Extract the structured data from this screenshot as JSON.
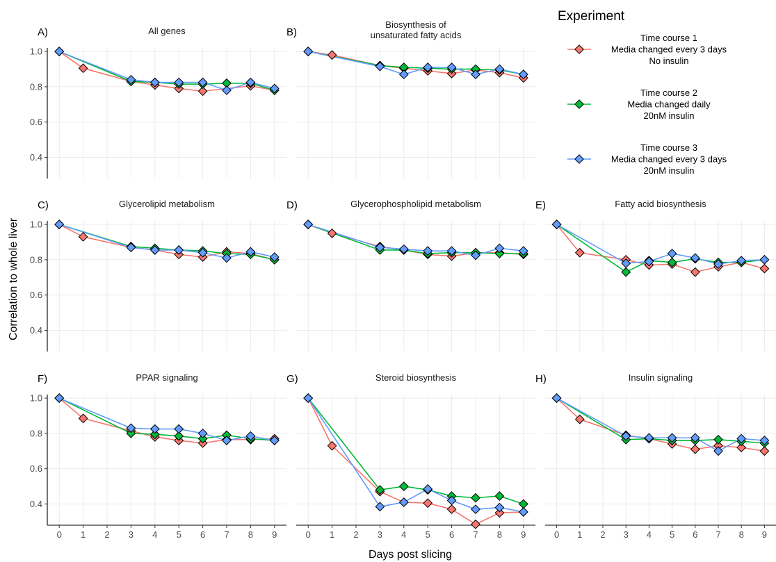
{
  "chart_data": {
    "type": "line",
    "x_label": "Days post slicing",
    "y_label": "Correlation to whole liver",
    "x_ticks": [
      0,
      1,
      2,
      3,
      4,
      5,
      6,
      7,
      8,
      9
    ],
    "y_ticks": [
      0.4,
      0.6,
      0.8,
      1.0
    ],
    "y_tick_labels": [
      "0.4",
      "0.6",
      "0.8",
      "1.0"
    ],
    "xlim": [
      -0.5,
      9.5
    ],
    "ylim": [
      0.28,
      1.02
    ],
    "grid": true,
    "legend": {
      "title": "Experiment",
      "placement": "top-right",
      "entries": [
        {
          "lines": [
            "Time course 1",
            "Media changed every 3 days",
            "No insulin"
          ],
          "color": "#f8766d"
        },
        {
          "lines": [
            "Time course 2",
            "Media changed daily",
            "20nM insulin"
          ],
          "color": "#00ba38"
        },
        {
          "lines": [
            "Time course 3",
            "Media changed every 3 days",
            "20nM insulin"
          ],
          "color": "#619cff"
        }
      ]
    },
    "panels": [
      {
        "label": "A)",
        "title": [
          "All genes"
        ],
        "series": [
          {
            "x": [
              0,
              1,
              3,
              4,
              5,
              6,
              8,
              9
            ],
            "y": [
              1.0,
              0.905,
              0.83,
              0.81,
              0.79,
              0.775,
              0.805,
              0.78
            ]
          },
          {
            "x": [
              0,
              3,
              4,
              5,
              6,
              7,
              8,
              9
            ],
            "y": [
              1.0,
              0.83,
              0.825,
              0.815,
              0.815,
              0.82,
              0.82,
              0.78
            ]
          },
          {
            "x": [
              0,
              3,
              4,
              5,
              6,
              7,
              8,
              9
            ],
            "y": [
              1.0,
              0.84,
              0.825,
              0.825,
              0.825,
              0.78,
              0.825,
              0.79
            ]
          }
        ]
      },
      {
        "label": "B)",
        "title": [
          "Biosynthesis of",
          "unsaturated fatty acids"
        ],
        "series": [
          {
            "x": [
              0,
              1,
              3,
              4,
              5,
              6,
              7,
              8,
              9
            ],
            "y": [
              1.0,
              0.98,
              0.92,
              0.905,
              0.89,
              0.875,
              0.895,
              0.88,
              0.85
            ]
          },
          {
            "x": [
              0,
              3,
              4,
              5,
              6,
              7,
              8,
              9
            ],
            "y": [
              1.0,
              0.92,
              0.91,
              0.905,
              0.9,
              0.9,
              0.895,
              0.87
            ]
          },
          {
            "x": [
              0,
              3,
              4,
              5,
              6,
              7,
              8,
              9
            ],
            "y": [
              1.0,
              0.915,
              0.87,
              0.91,
              0.91,
              0.87,
              0.9,
              0.87
            ]
          }
        ]
      },
      null,
      {
        "label": "C)",
        "title": [
          "Glycerolipid metabolism"
        ],
        "series": [
          {
            "x": [
              0,
              1,
              3,
              4,
              5,
              6,
              7,
              8,
              9
            ],
            "y": [
              1.0,
              0.93,
              0.87,
              0.855,
              0.83,
              0.815,
              0.845,
              0.835,
              0.8
            ]
          },
          {
            "x": [
              0,
              3,
              4,
              5,
              6,
              7,
              8,
              9
            ],
            "y": [
              1.0,
              0.875,
              0.865,
              0.855,
              0.85,
              0.835,
              0.83,
              0.8
            ]
          },
          {
            "x": [
              0,
              3,
              4,
              5,
              6,
              7,
              8,
              9
            ],
            "y": [
              1.0,
              0.87,
              0.855,
              0.855,
              0.84,
              0.81,
              0.845,
              0.815
            ]
          }
        ]
      },
      {
        "label": "D)",
        "title": [
          "Glycerophospholipid metabolism"
        ],
        "series": [
          {
            "x": [
              0,
              1,
              3,
              4,
              5,
              6,
              7,
              8,
              9
            ],
            "y": [
              1.0,
              0.95,
              0.875,
              0.855,
              0.83,
              0.82,
              0.84,
              0.84,
              0.83
            ]
          },
          {
            "x": [
              0,
              3,
              4,
              5,
              6,
              7,
              8,
              9
            ],
            "y": [
              1.0,
              0.855,
              0.855,
              0.835,
              0.84,
              0.84,
              0.835,
              0.835
            ]
          },
          {
            "x": [
              0,
              3,
              4,
              5,
              6,
              7,
              8,
              9
            ],
            "y": [
              1.0,
              0.87,
              0.86,
              0.85,
              0.85,
              0.825,
              0.865,
              0.85
            ]
          }
        ]
      },
      {
        "label": "E)",
        "title": [
          "Fatty acid biosynthesis"
        ],
        "series": [
          {
            "x": [
              0,
              1,
              3,
              4,
              5,
              6,
              7,
              8,
              9
            ],
            "y": [
              1.0,
              0.84,
              0.8,
              0.77,
              0.775,
              0.73,
              0.76,
              0.785,
              0.75
            ]
          },
          {
            "x": [
              0,
              3,
              4,
              5,
              6,
              7,
              8,
              9
            ],
            "y": [
              1.0,
              0.73,
              0.795,
              0.785,
              0.805,
              0.785,
              0.785,
              0.8
            ]
          },
          {
            "x": [
              0,
              3,
              4,
              5,
              6,
              7,
              8,
              9
            ],
            "y": [
              1.0,
              0.78,
              0.79,
              0.835,
              0.81,
              0.775,
              0.795,
              0.8
            ]
          }
        ]
      },
      {
        "label": "F)",
        "title": [
          "PPAR signaling"
        ],
        "series": [
          {
            "x": [
              0,
              1,
              3,
              4,
              5,
              6,
              7,
              8,
              9
            ],
            "y": [
              1.0,
              0.885,
              0.815,
              0.78,
              0.76,
              0.745,
              0.765,
              0.765,
              0.77
            ]
          },
          {
            "x": [
              0,
              3,
              4,
              5,
              6,
              7,
              8,
              9
            ],
            "y": [
              1.0,
              0.8,
              0.795,
              0.785,
              0.77,
              0.79,
              0.77,
              0.76
            ]
          },
          {
            "x": [
              0,
              3,
              4,
              5,
              6,
              7,
              8,
              9
            ],
            "y": [
              1.0,
              0.83,
              0.825,
              0.825,
              0.8,
              0.76,
              0.785,
              0.76
            ]
          }
        ]
      },
      {
        "label": "G)",
        "title": [
          "Steroid biosynthesis"
        ],
        "series": [
          {
            "x": [
              0,
              1,
              3,
              4,
              5,
              6,
              7,
              8,
              9
            ],
            "y": [
              1.0,
              0.73,
              0.47,
              0.41,
              0.405,
              0.37,
              0.285,
              0.35,
              0.355
            ]
          },
          {
            "x": [
              0,
              3,
              4,
              5,
              6,
              7,
              8,
              9
            ],
            "y": [
              1.0,
              0.48,
              0.5,
              0.48,
              0.445,
              0.435,
              0.445,
              0.4
            ]
          },
          {
            "x": [
              0,
              3,
              4,
              5,
              6,
              7,
              8,
              9
            ],
            "y": [
              1.0,
              0.385,
              0.41,
              0.485,
              0.42,
              0.37,
              0.38,
              0.355
            ]
          }
        ]
      },
      {
        "label": "H)",
        "title": [
          "Insulin signaling"
        ],
        "series": [
          {
            "x": [
              0,
              1,
              3,
              4,
              5,
              6,
              7,
              8,
              9
            ],
            "y": [
              1.0,
              0.88,
              0.79,
              0.77,
              0.74,
              0.71,
              0.73,
              0.72,
              0.7
            ]
          },
          {
            "x": [
              0,
              3,
              4,
              5,
              6,
              7,
              8,
              9
            ],
            "y": [
              1.0,
              0.765,
              0.77,
              0.76,
              0.76,
              0.765,
              0.755,
              0.745
            ]
          },
          {
            "x": [
              0,
              3,
              4,
              5,
              6,
              7,
              8,
              9
            ],
            "y": [
              1.0,
              0.785,
              0.775,
              0.775,
              0.775,
              0.7,
              0.77,
              0.76
            ]
          }
        ]
      }
    ]
  }
}
